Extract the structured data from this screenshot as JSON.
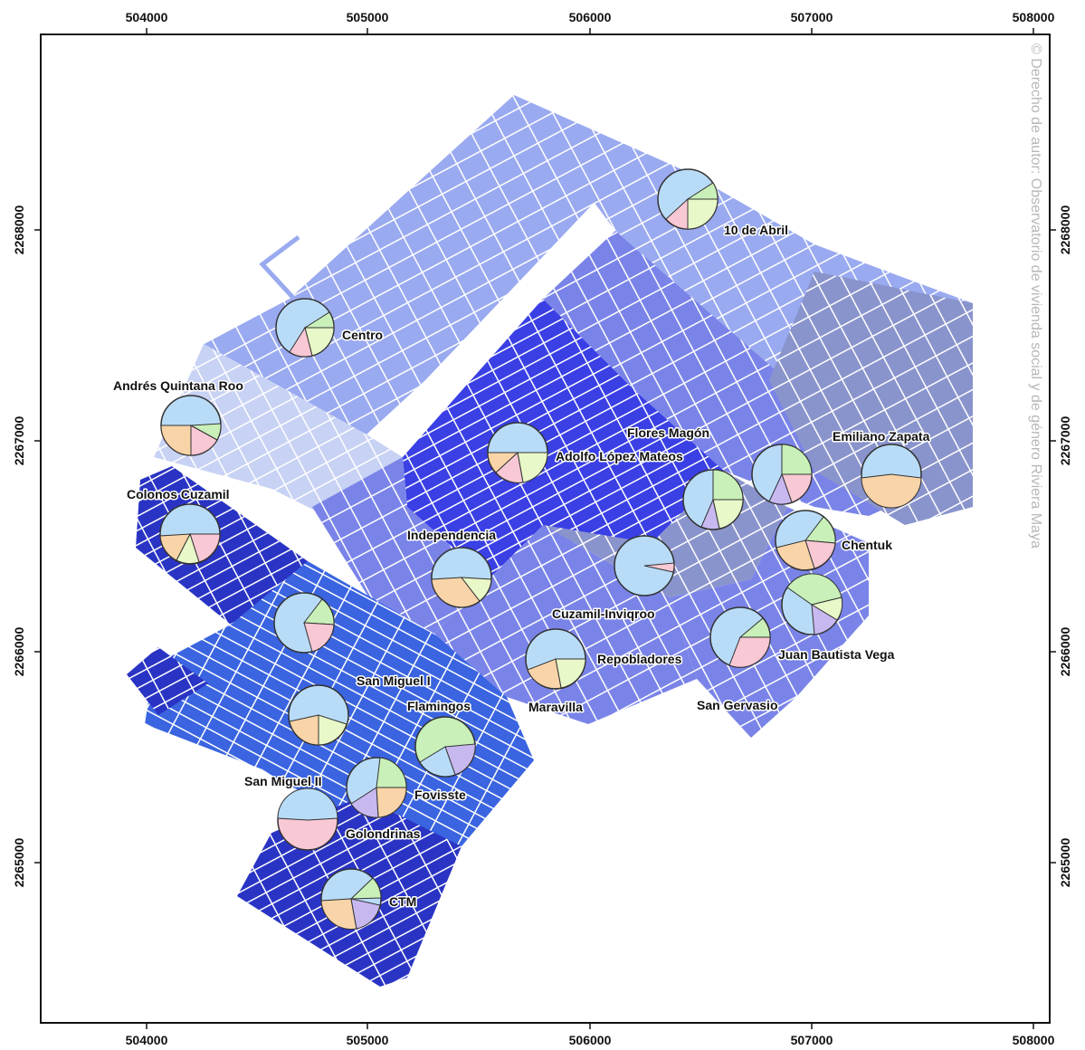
{
  "map": {
    "x_ticks": [
      "504000",
      "505000",
      "506000",
      "507000",
      "508000"
    ],
    "y_ticks": [
      "2268000",
      "2267000",
      "2266000",
      "2265000"
    ],
    "watermark": "© Derecho de autor: Observatorio de vivienda social y de género Riviera Maya",
    "neighborhoods": [
      "10 de Abril",
      "Centro",
      "Andrés Quintana Roo",
      "Flores Magón",
      "Adolfo López Mateos",
      "Emiliano Zapata",
      "Colonos Cuzamil",
      "Independencia",
      "Chentuk",
      "Cuzamil-Inviqroo",
      "Repobladores",
      "Juan Bautista Vega",
      "San Miguel I",
      "Maravilla",
      "San Gervasio",
      "Flamingos",
      "San Miguel II",
      "Fovisste",
      "Golondrinas",
      "CTM"
    ],
    "colors": {
      "pie_light_blue": "#b8dcf8",
      "pie_peach": "#f8d4a8",
      "pie_pink": "#f8c8d4",
      "pie_lavender": "#c8b8f0",
      "pie_light_green": "#c8f0b8",
      "pie_yellow_green": "#e8f8c8",
      "zone_pale": "#c8d2f4",
      "zone_light": "#9aaaf0",
      "zone_medium": "#7a84e8",
      "zone_grayblue": "#8a94cc",
      "zone_bright": "#3a40e4",
      "zone_dark": "#2a34c4",
      "zone_royal": "#3a64e0"
    }
  }
}
